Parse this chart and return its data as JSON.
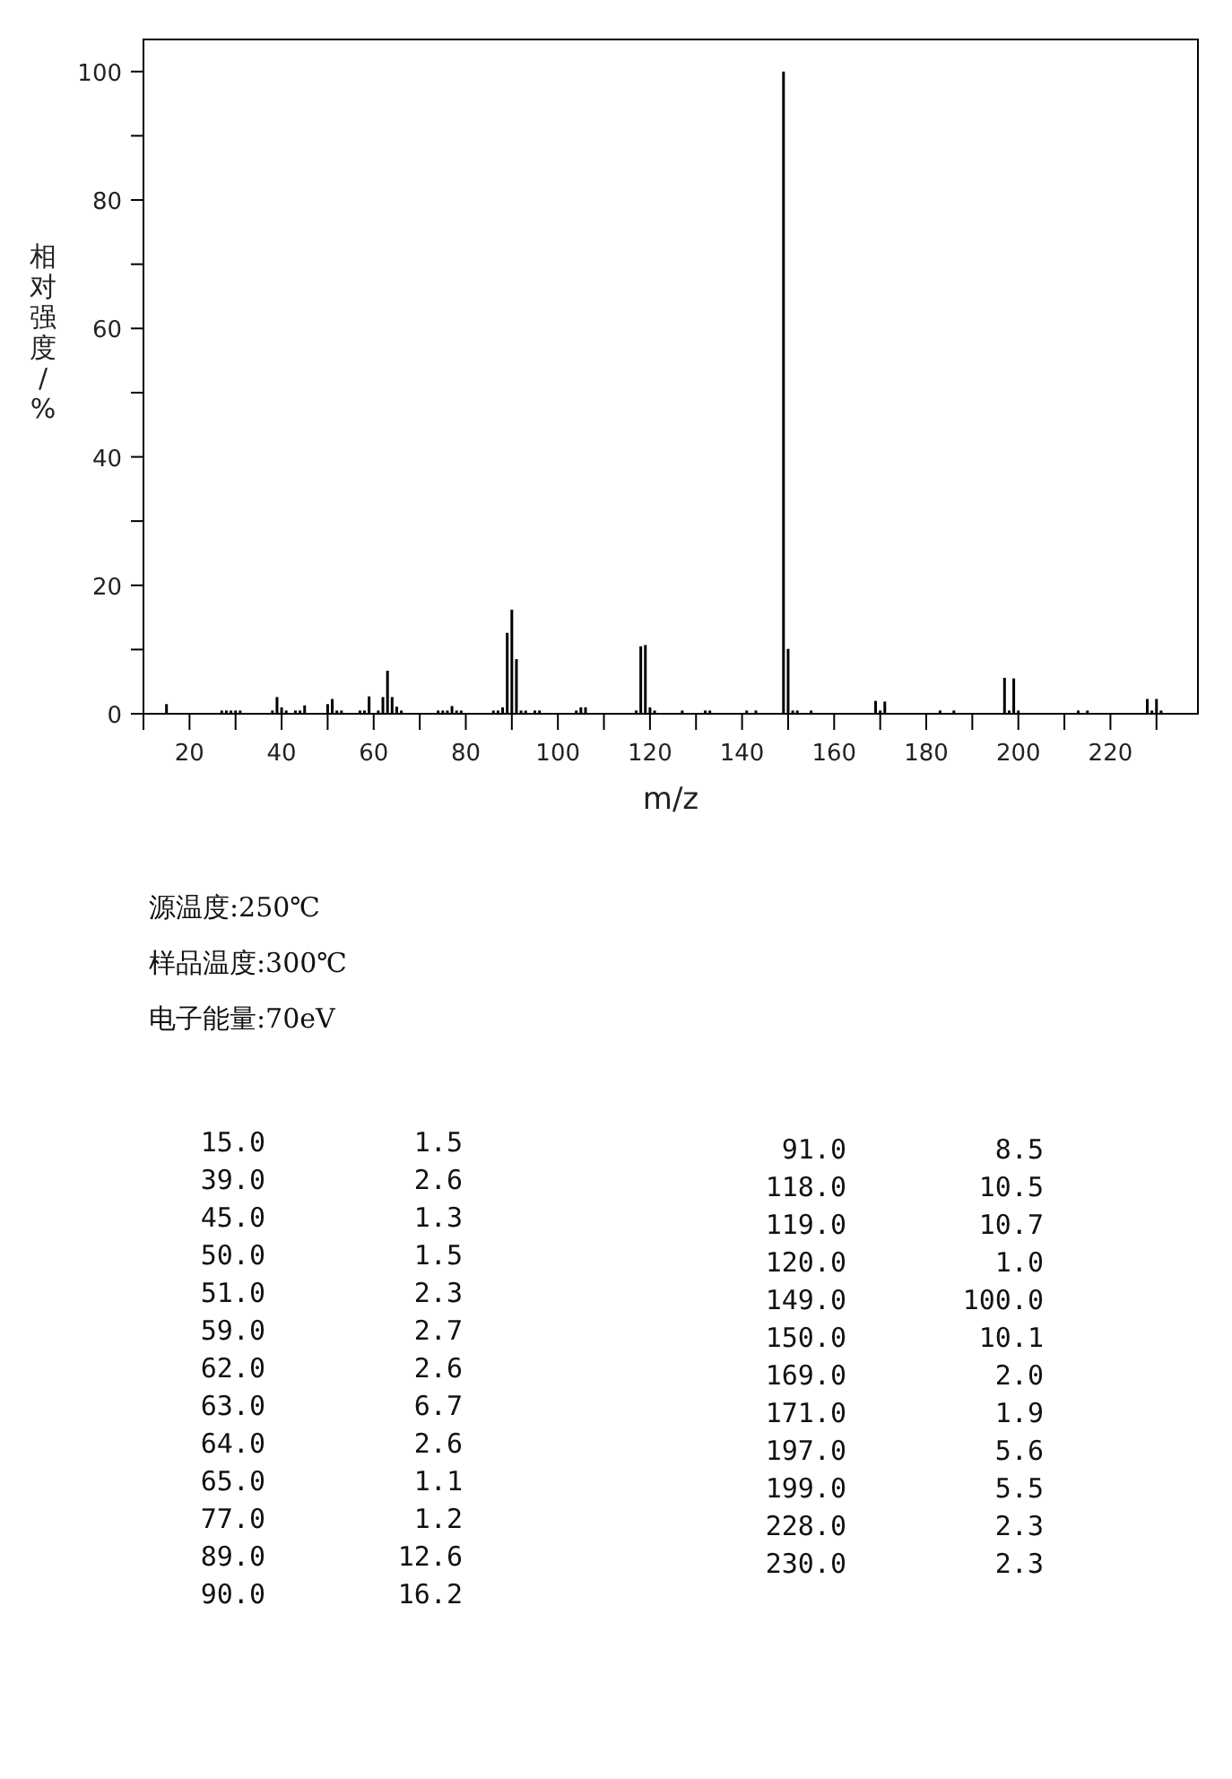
{
  "chart_data": [
    {
      "type": "bar",
      "xlabel": "m/z",
      "ylabel": "相对强度/%",
      "annotations": [
        "源温度:250℃",
        "样品温度:300℃",
        "电子能量:70eV"
      ],
      "x": [
        15,
        27,
        28,
        29,
        30,
        31,
        38,
        39,
        40,
        41,
        43,
        44,
        45,
        50,
        51,
        52,
        53,
        57,
        58,
        59,
        61,
        62,
        63,
        64,
        65,
        66,
        74,
        75,
        76,
        77,
        78,
        79,
        86,
        87,
        88,
        89,
        90,
        91,
        92,
        93,
        95,
        96,
        104,
        105,
        106,
        117,
        118,
        119,
        120,
        121,
        127,
        132,
        133,
        141,
        143,
        149,
        150,
        151,
        152,
        155,
        169,
        170,
        171,
        183,
        186,
        197,
        198,
        199,
        200,
        213,
        215,
        228,
        229,
        230,
        231
      ],
      "values": [
        1.5,
        0.5,
        0.5,
        0.5,
        0.5,
        0.5,
        0.5,
        2.6,
        1.0,
        0.5,
        0.5,
        0.5,
        1.3,
        1.5,
        2.3,
        0.5,
        0.5,
        0.5,
        0.5,
        2.7,
        0.5,
        2.6,
        6.7,
        2.6,
        1.1,
        0.5,
        0.5,
        0.5,
        0.5,
        1.2,
        0.5,
        0.5,
        0.5,
        0.5,
        1.0,
        12.6,
        16.2,
        8.5,
        0.5,
        0.5,
        0.5,
        0.5,
        0.5,
        1.0,
        1.0,
        0.5,
        10.5,
        10.7,
        1.0,
        0.5,
        0.5,
        0.5,
        0.5,
        0.5,
        0.5,
        100.0,
        10.1,
        0.5,
        0.5,
        0.5,
        2.0,
        0.5,
        1.9,
        0.5,
        0.5,
        5.6,
        0.5,
        5.5,
        0.5,
        0.5,
        0.5,
        2.3,
        0.5,
        2.3,
        0.5
      ],
      "color": "#000000",
      "xlim": [
        10,
        239
      ],
      "xticks": [
        {
          "value": 10,
          "label": null
        },
        20,
        {
          "value": 30,
          "label": null
        },
        40,
        {
          "value": 50,
          "label": null
        },
        60,
        {
          "value": 70,
          "label": null
        },
        80,
        {
          "value": 90,
          "label": null
        },
        100,
        {
          "value": 110,
          "label": null
        },
        120,
        {
          "value": 130,
          "label": null
        },
        140,
        {
          "value": 150,
          "label": null
        },
        160,
        {
          "value": 170,
          "label": null
        },
        180,
        {
          "value": 190,
          "label": null
        },
        200,
        {
          "value": 210,
          "label": null
        },
        220,
        {
          "value": 230,
          "label": null
        }
      ],
      "ylim": [
        0,
        105
      ],
      "yticks": [
        0,
        {
          "value": 10,
          "label": null
        },
        20,
        {
          "value": 30,
          "label": null
        },
        40,
        {
          "value": 50,
          "label": null
        },
        60,
        {
          "value": 70,
          "label": null
        },
        80,
        {
          "value": 90,
          "label": null
        },
        100
      ]
    },
    {
      "type": "other",
      "annotations": [
        "15.0",
        "1.5",
        "39.0",
        "2.6",
        "45.0",
        "1.3",
        "50.0",
        "1.5",
        "51.0",
        "2.3",
        "59.0",
        "2.7",
        "62.0",
        "2.6",
        "63.0",
        "6.7",
        "64.0",
        "2.6",
        "65.0",
        "1.1",
        "77.0",
        "1.2",
        "89.0",
        "12.6",
        "90.0",
        "16.2",
        "91.0",
        "8.5",
        "118.0",
        "10.5",
        "119.0",
        "10.7",
        "120.0",
        "1.0",
        "149.0",
        "100.0",
        "150.0",
        "10.1",
        "169.0",
        "2.0",
        "171.0",
        "1.9",
        "197.0",
        "5.6",
        "199.0",
        "5.5",
        "228.0",
        "2.3",
        "230.0",
        "2.3"
      ]
    }
  ]
}
